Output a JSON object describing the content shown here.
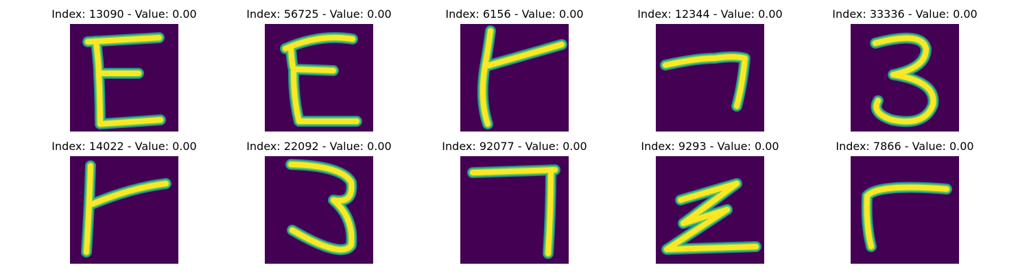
{
  "colors": {
    "background": "#440154",
    "stroke_outer": "#21918c",
    "stroke_mid": "#5ec962",
    "stroke_core": "#fde725"
  },
  "panels": [
    {
      "title": "Index: 13090 - Value: 0.00",
      "glyph": "E"
    },
    {
      "title": "Index: 56725 - Value: 0.00",
      "glyph": "E"
    },
    {
      "title": "Index: 6156 - Value: 0.00",
      "glyph": "Y"
    },
    {
      "title": "Index: 12344 - Value: 0.00",
      "glyph": "7"
    },
    {
      "title": "Index: 33336 - Value: 0.00",
      "glyph": "3"
    },
    {
      "title": "Index: 14022 - Value: 0.00",
      "glyph": "Y"
    },
    {
      "title": "Index: 22092 - Value: 0.00",
      "glyph": "3"
    },
    {
      "title": "Index: 92077 - Value: 0.00",
      "glyph": "7"
    },
    {
      "title": "Index: 9293 - Value: 0.00",
      "glyph": "Z"
    },
    {
      "title": "Index: 7866 - Value: 0.00",
      "glyph": "r"
    }
  ]
}
